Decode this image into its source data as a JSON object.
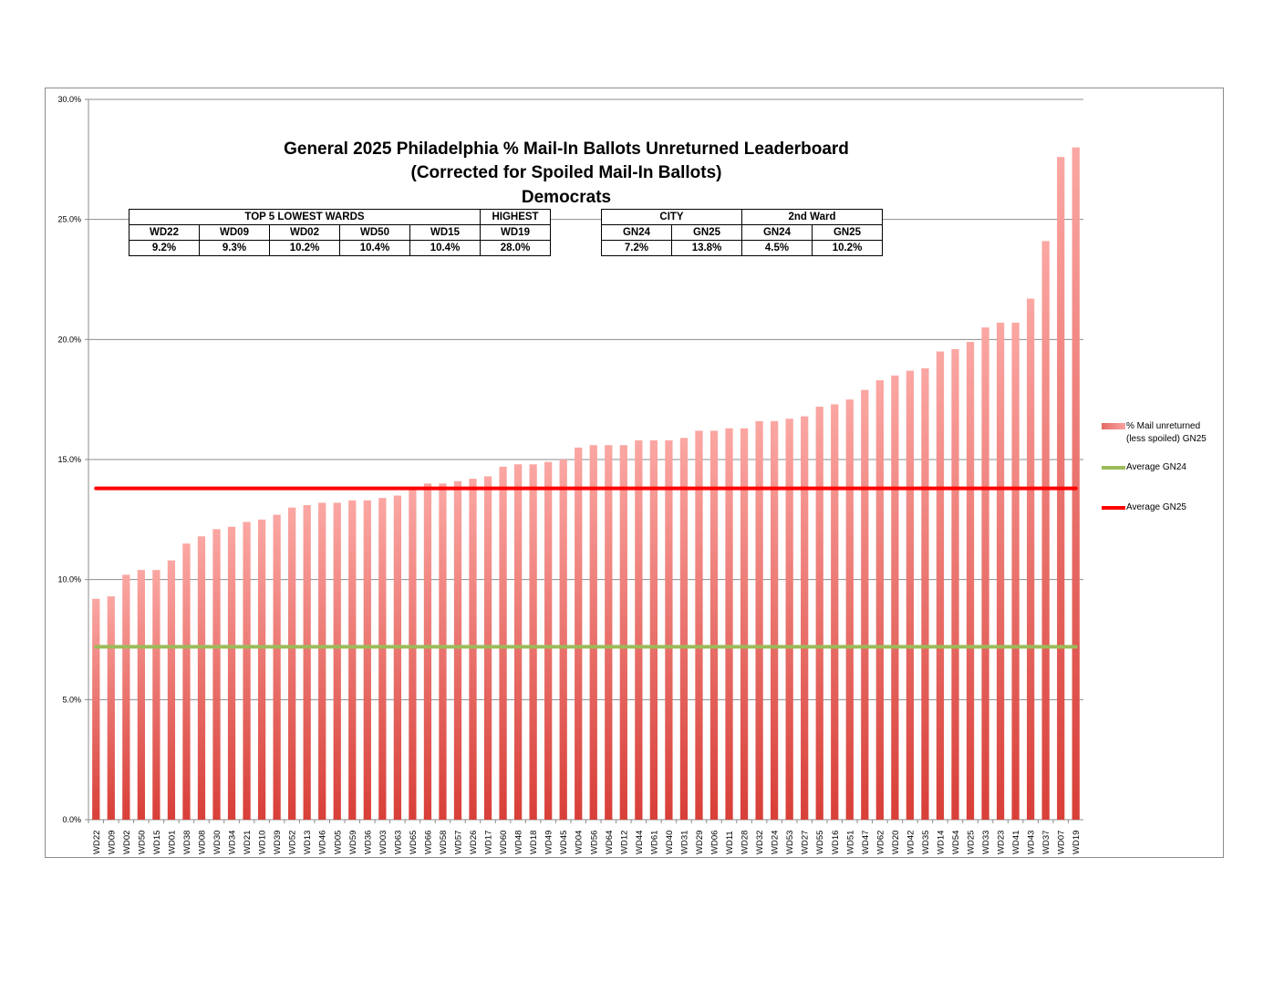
{
  "chart_data": {
    "type": "bar",
    "title": [
      "General 2025 Philadelphia % Mail-In Ballots Unreturned Leaderboard",
      "(Corrected for Spoiled Mail-In Ballots)",
      "Democrats"
    ],
    "xlabel": "",
    "ylabel": "",
    "ylim": [
      0,
      30
    ],
    "yticks": [
      "0.0%",
      "5.0%",
      "10.0%",
      "15.0%",
      "20.0%",
      "25.0%",
      "30.0%"
    ],
    "grid": true,
    "legend_placement": "right",
    "categories": [
      "WD22",
      "WD09",
      "WD02",
      "WD50",
      "WD15",
      "WD01",
      "WD38",
      "WD08",
      "WD30",
      "WD34",
      "WD21",
      "WD10",
      "WD39",
      "WD52",
      "WD13",
      "WD46",
      "WD05",
      "WD59",
      "WD36",
      "WD03",
      "WD63",
      "WD65",
      "WD66",
      "WD58",
      "WD57",
      "WD26",
      "WD17",
      "WD60",
      "WD48",
      "WD18",
      "WD49",
      "WD45",
      "WD04",
      "WD56",
      "WD64",
      "WD12",
      "WD44",
      "WD61",
      "WD40",
      "WD31",
      "WD29",
      "WD06",
      "WD11",
      "WD28",
      "WD32",
      "WD24",
      "WD53",
      "WD27",
      "WD55",
      "WD16",
      "WD51",
      "WD47",
      "WD62",
      "WD20",
      "WD42",
      "WD35",
      "WD14",
      "WD54",
      "WD25",
      "WD33",
      "WD23",
      "WD41",
      "WD43",
      "WD37",
      "WD07",
      "WD19"
    ],
    "series": [
      {
        "name": "% Mail unreturned (less spoiled) GN25",
        "type": "bar",
        "color": "#e05550",
        "values": [
          9.2,
          9.3,
          10.2,
          10.4,
          10.4,
          10.8,
          11.5,
          11.8,
          12.1,
          12.2,
          12.4,
          12.5,
          12.7,
          13.0,
          13.1,
          13.2,
          13.2,
          13.3,
          13.3,
          13.4,
          13.5,
          13.8,
          14.0,
          14.0,
          14.1,
          14.2,
          14.3,
          14.7,
          14.8,
          14.8,
          14.9,
          15.0,
          15.5,
          15.6,
          15.6,
          15.6,
          15.8,
          15.8,
          15.8,
          15.9,
          16.2,
          16.2,
          16.3,
          16.3,
          16.6,
          16.6,
          16.7,
          16.8,
          17.2,
          17.3,
          17.5,
          17.9,
          18.3,
          18.5,
          18.7,
          18.8,
          19.5,
          19.6,
          19.9,
          20.5,
          20.7,
          20.7,
          21.7,
          24.1,
          27.6,
          28.0
        ]
      },
      {
        "name": "Average GN24",
        "type": "line",
        "color": "#9bbb59",
        "value": 7.2
      },
      {
        "name": "Average GN25",
        "type": "line",
        "color": "#ff0000",
        "value": 13.8
      }
    ]
  },
  "tables": {
    "lowest": {
      "header": "TOP 5 LOWEST WARDS",
      "highest_header": "HIGHEST",
      "wards": [
        "WD22",
        "WD09",
        "WD02",
        "WD50",
        "WD15",
        "WD19"
      ],
      "values": [
        "9.2%",
        "9.3%",
        "10.2%",
        "10.4%",
        "10.4%",
        "28.0%"
      ]
    },
    "compare": {
      "city_header": "CITY",
      "ward_header": "2nd Ward",
      "labels": [
        "GN24",
        "GN25",
        "GN24",
        "GN25"
      ],
      "values": [
        "7.2%",
        "13.8%",
        "4.5%",
        "10.2%"
      ]
    }
  },
  "legend": {
    "bar_line1": "% Mail unreturned",
    "bar_line2": "(less spoiled) GN25",
    "gn24": "Average GN24",
    "gn25": "Average GN25"
  }
}
